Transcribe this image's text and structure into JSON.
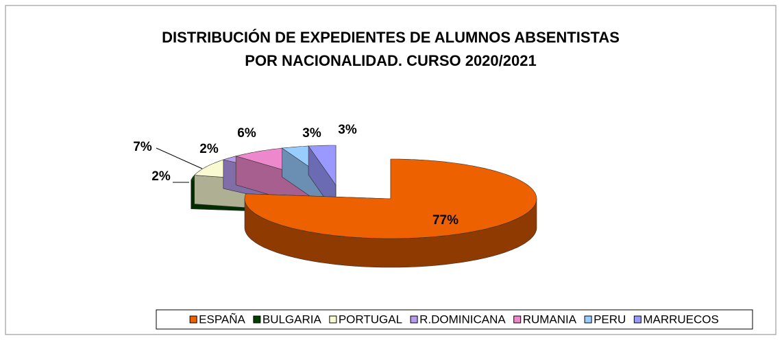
{
  "chart_data": {
    "type": "pie",
    "title": [
      "DISTRIBUCIÓN DE EXPEDIENTES DE ALUMNOS ABSENTISTAS",
      "POR NACIONALIDAD. CURSO 2020/2021"
    ],
    "categories": [
      "ESPAÑA",
      "BULGARIA",
      "PORTUGAL",
      "R.DOMINICANA",
      "RUMANIA",
      "PERU",
      "MARRUECOS"
    ],
    "values": [
      77,
      2,
      7,
      2,
      6,
      3,
      3
    ],
    "value_labels": [
      "77%",
      "2%",
      "7%",
      "2%",
      "6%",
      "3%",
      "3%"
    ],
    "colors": [
      "#ee6100",
      "#004000",
      "#fafad2",
      "#b89cf0",
      "#ee88cc",
      "#99ccff",
      "#9999ff"
    ],
    "legend": "bottom"
  }
}
